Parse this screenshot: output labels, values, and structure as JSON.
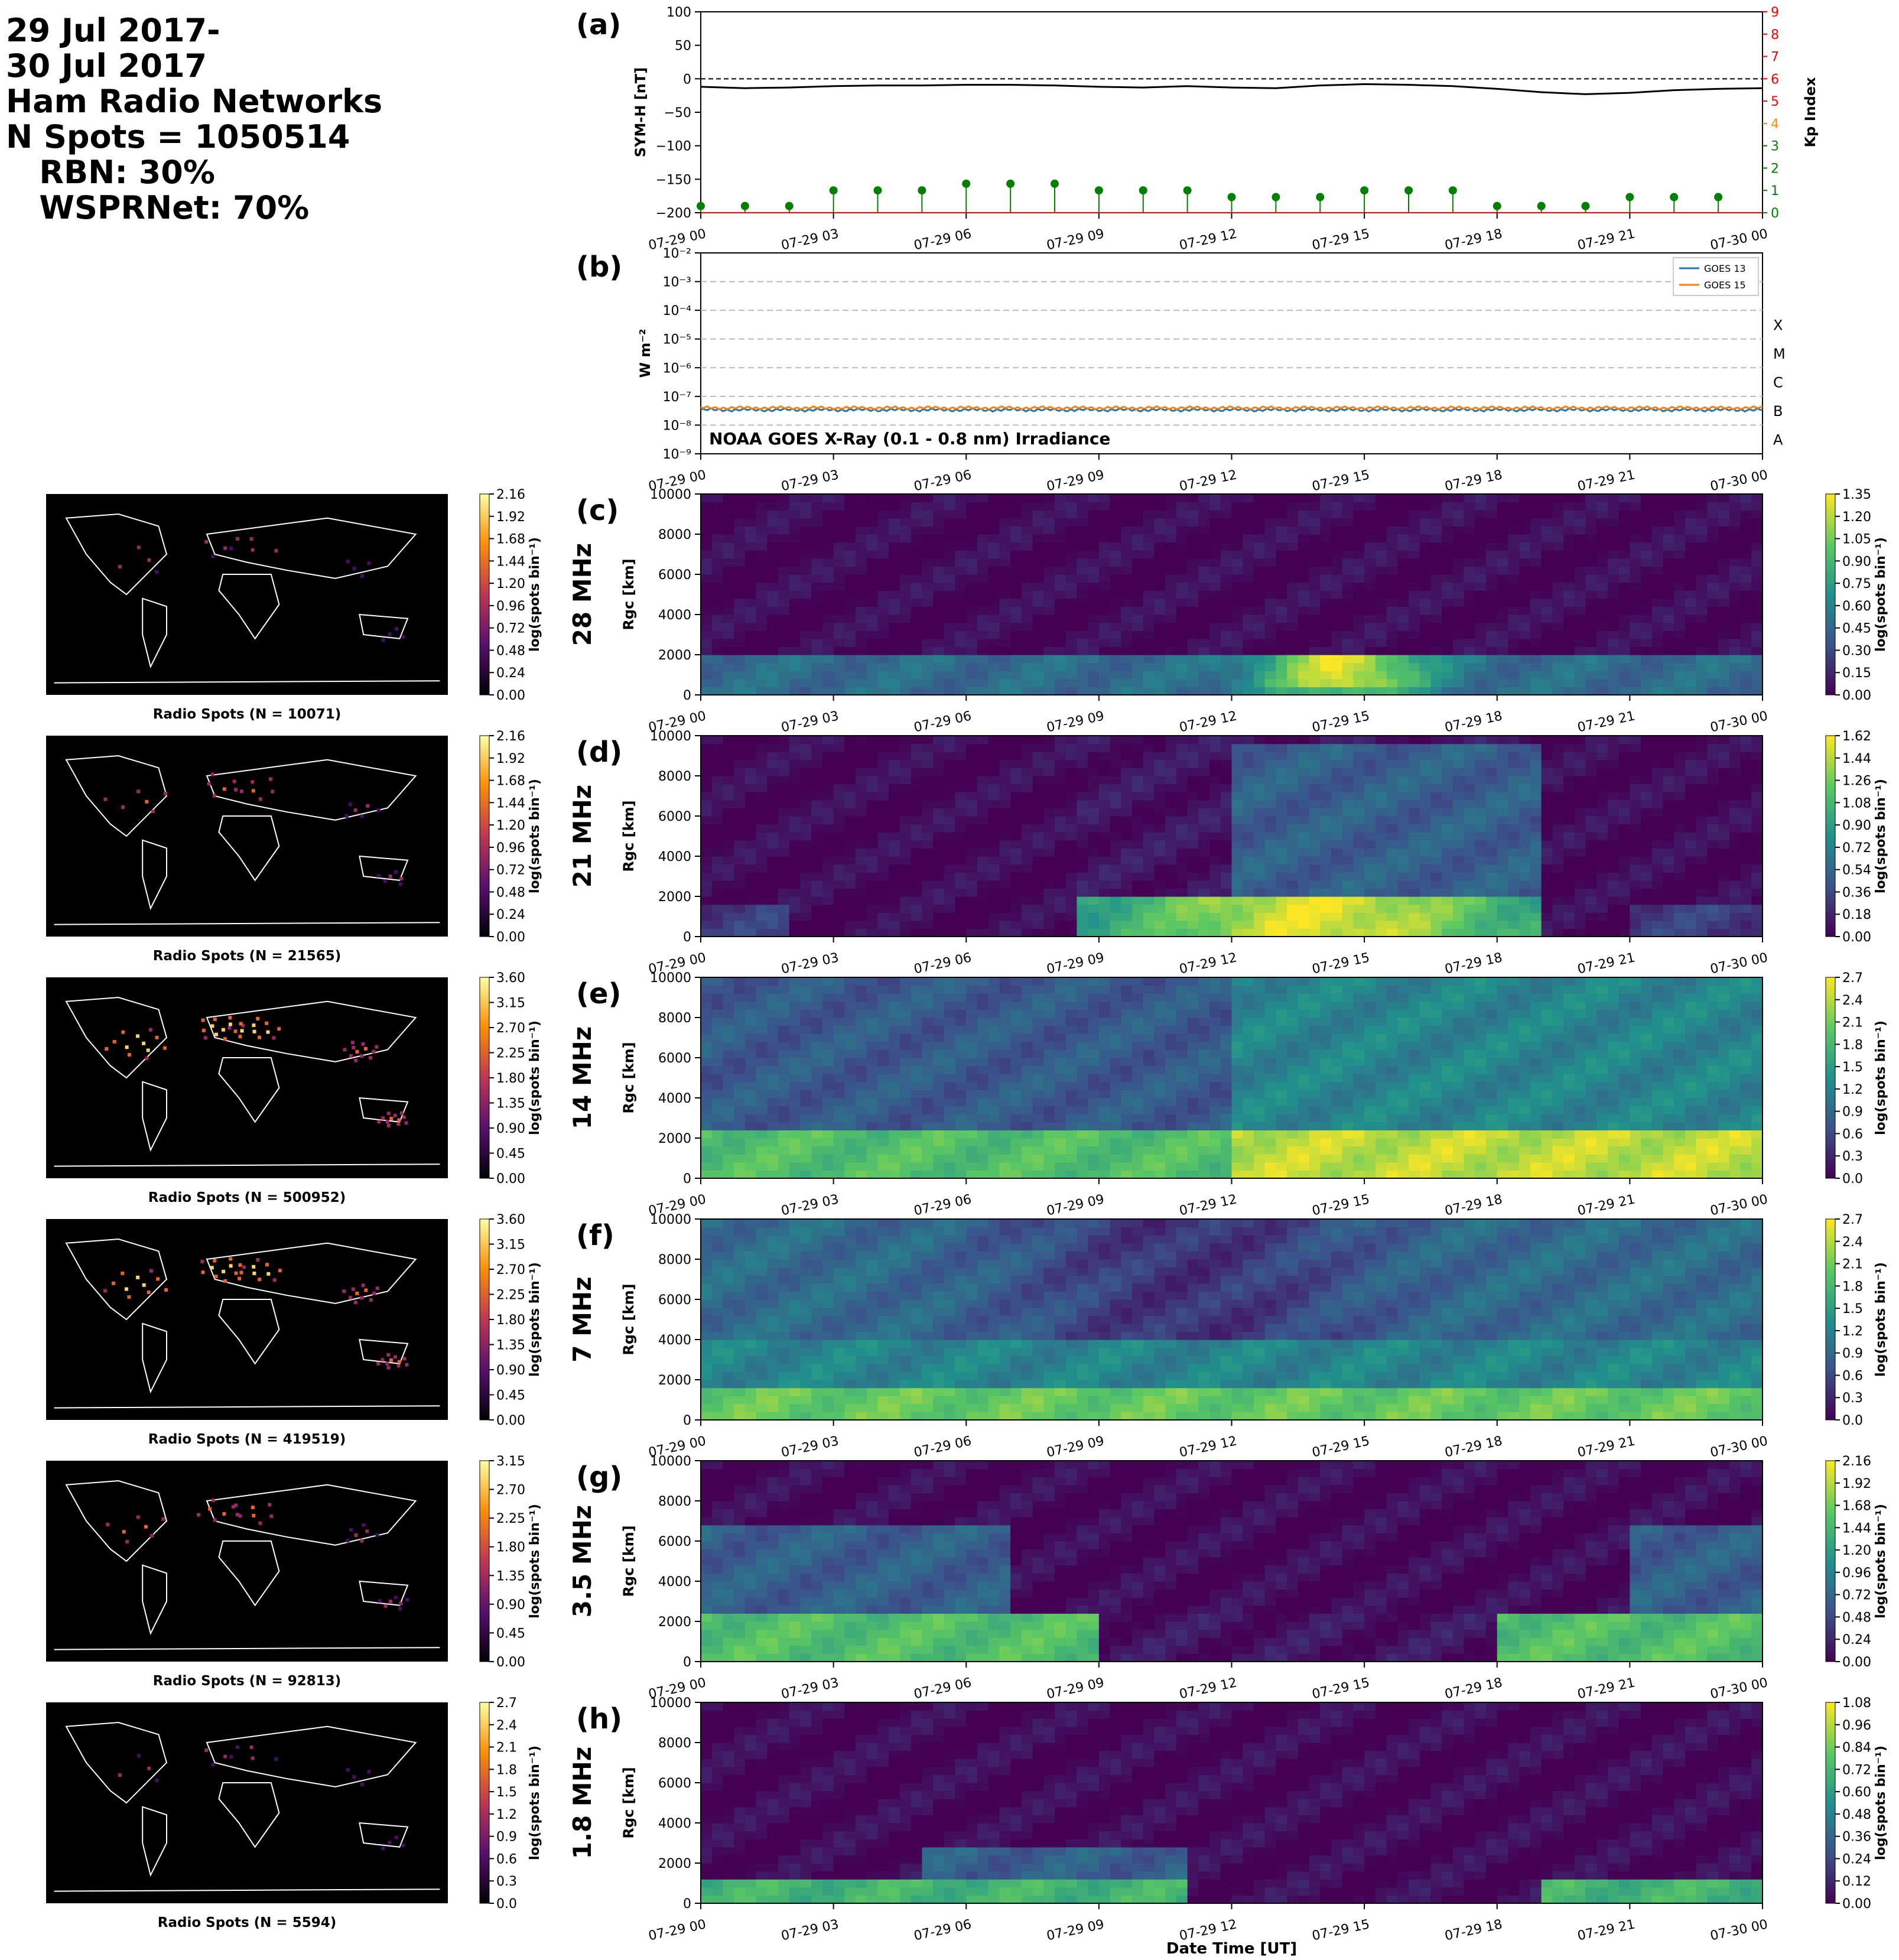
{
  "header": {
    "lines": [
      "29 Jul 2017-",
      "30 Jul 2017",
      "Ham Radio Networks",
      "N Spots = 1050514",
      "   RBN: 30%",
      "   WSPRNet: 70%"
    ]
  },
  "colors": {
    "symh_line": "#000000",
    "kp_green": "#008000",
    "kp_orange": "#ff8c00",
    "kp_red": "#ff0000",
    "goes13": "#1f77b4",
    "goes15": "#ff7f0e",
    "map_bg": "#000000",
    "coast": "#ffffff"
  },
  "time_ticks": [
    "07-29 00",
    "07-29 03",
    "07-29 06",
    "07-29 09",
    "07-29 12",
    "07-29 15",
    "07-29 18",
    "07-29 21",
    "07-30 00"
  ],
  "xlabel": "Date Time [UT]",
  "chart_data": [
    {
      "id": "a",
      "type": "line",
      "panel_label": "(a)",
      "ylabel": "SYM-H [nT]",
      "ylim": [
        -200,
        100
      ],
      "yticks": [
        "100",
        "50",
        "0",
        "−50",
        "−100",
        "−150",
        "−200"
      ],
      "y2label": "Kp Index",
      "y2lim": [
        0,
        9
      ],
      "y2ticks": [
        "0",
        "1",
        "2",
        "3",
        "4",
        "5",
        "6",
        "7",
        "8",
        "9"
      ],
      "symh": {
        "x_hours": [
          0,
          1,
          2,
          3,
          4,
          5,
          6,
          7,
          8,
          9,
          10,
          11,
          12,
          13,
          14,
          15,
          16,
          17,
          18,
          19,
          20,
          21,
          22,
          23,
          24
        ],
        "values": [
          -12,
          -14,
          -13,
          -11,
          -10,
          -10,
          -9,
          -9,
          -10,
          -12,
          -13,
          -11,
          -13,
          -14,
          -10,
          -8,
          -9,
          -11,
          -15,
          -20,
          -23,
          -21,
          -17,
          -15,
          -14
        ]
      },
      "kp": {
        "x_hours": [
          0,
          1,
          2,
          3,
          4,
          5,
          6,
          7,
          8,
          9,
          10,
          11,
          12,
          13,
          14,
          15,
          16,
          17,
          18,
          19,
          20,
          21,
          22,
          23
        ],
        "values": [
          0.3,
          0.3,
          0.3,
          1.0,
          1.0,
          1.0,
          1.3,
          1.3,
          1.3,
          1.0,
          1.0,
          1.0,
          0.7,
          0.7,
          0.7,
          1.0,
          1.0,
          1.0,
          0.3,
          0.3,
          0.3,
          0.7,
          0.7,
          0.7
        ]
      }
    },
    {
      "id": "b",
      "type": "line",
      "panel_label": "(b)",
      "ylabel": "W m⁻²",
      "yscale": "log",
      "ylim": [
        1e-09,
        0.01
      ],
      "yticks": [
        "10⁻²",
        "10⁻³",
        "10⁻⁴",
        "10⁻⁵",
        "10⁻⁶",
        "10⁻⁷",
        "10⁻⁸",
        "10⁻⁹"
      ],
      "flare_classes": [
        "X",
        "M",
        "C",
        "B",
        "A"
      ],
      "annotation": "NOAA GOES X-Ray (0.1 - 0.8 nm) Irradiance",
      "legend_position": "top-right",
      "series": [
        {
          "name": "GOES 13",
          "level": 3.4e-08
        },
        {
          "name": "GOES 15",
          "level": 4e-08
        }
      ]
    },
    {
      "id": "c",
      "type": "heatmap",
      "panel_label": "(c)",
      "band": "28 MHz",
      "ylabel": "Rgc [km]",
      "ylim": [
        0,
        10000
      ],
      "yticks": [
        "10000",
        "8000",
        "6000",
        "4000",
        "2000",
        "0"
      ],
      "colorbar_ticks": [
        "1.35",
        "1.20",
        "1.05",
        "0.90",
        "0.75",
        "0.60",
        "0.45",
        "0.30",
        "0.15",
        "0.00"
      ],
      "map": {
        "title": "Radio Spots (N = 10071)",
        "colorbar_ticks": [
          "2.16",
          "1.92",
          "1.68",
          "1.44",
          "1.20",
          "0.96",
          "0.72",
          "0.48",
          "0.24",
          "0.00"
        ]
      }
    },
    {
      "id": "d",
      "type": "heatmap",
      "panel_label": "(d)",
      "band": "21 MHz",
      "ylabel": "Rgc [km]",
      "ylim": [
        0,
        10000
      ],
      "yticks": [
        "10000",
        "8000",
        "6000",
        "4000",
        "2000",
        "0"
      ],
      "colorbar_ticks": [
        "1.62",
        "1.44",
        "1.26",
        "1.08",
        "0.90",
        "0.72",
        "0.54",
        "0.36",
        "0.18",
        "0.00"
      ],
      "map": {
        "title": "Radio Spots (N = 21565)",
        "colorbar_ticks": [
          "2.16",
          "1.92",
          "1.68",
          "1.44",
          "1.20",
          "0.96",
          "0.72",
          "0.48",
          "0.24",
          "0.00"
        ]
      }
    },
    {
      "id": "e",
      "type": "heatmap",
      "panel_label": "(e)",
      "band": "14 MHz",
      "ylabel": "Rgc [km]",
      "ylim": [
        0,
        10000
      ],
      "yticks": [
        "10000",
        "8000",
        "6000",
        "4000",
        "2000",
        "0"
      ],
      "colorbar_ticks": [
        "2.7",
        "2.4",
        "2.1",
        "1.8",
        "1.5",
        "1.2",
        "0.9",
        "0.6",
        "0.3",
        "0.0"
      ],
      "map": {
        "title": "Radio Spots (N = 500952)",
        "colorbar_ticks": [
          "3.60",
          "3.15",
          "2.70",
          "2.25",
          "1.80",
          "1.35",
          "0.90",
          "0.45",
          "0.00"
        ]
      }
    },
    {
      "id": "f",
      "type": "heatmap",
      "panel_label": "(f)",
      "band": "7 MHz",
      "ylabel": "Rgc [km]",
      "ylim": [
        0,
        10000
      ],
      "yticks": [
        "10000",
        "8000",
        "6000",
        "4000",
        "2000",
        "0"
      ],
      "colorbar_ticks": [
        "2.7",
        "2.4",
        "2.1",
        "1.8",
        "1.5",
        "1.2",
        "0.9",
        "0.6",
        "0.3",
        "0.0"
      ],
      "map": {
        "title": "Radio Spots (N = 419519)",
        "colorbar_ticks": [
          "3.60",
          "3.15",
          "2.70",
          "2.25",
          "1.80",
          "1.35",
          "0.90",
          "0.45",
          "0.00"
        ]
      }
    },
    {
      "id": "g",
      "type": "heatmap",
      "panel_label": "(g)",
      "band": "3.5 MHz",
      "ylabel": "Rgc [km]",
      "ylim": [
        0,
        10000
      ],
      "yticks": [
        "10000",
        "8000",
        "6000",
        "4000",
        "2000",
        "0"
      ],
      "colorbar_ticks": [
        "2.16",
        "1.92",
        "1.68",
        "1.44",
        "1.20",
        "0.96",
        "0.72",
        "0.48",
        "0.24",
        "0.00"
      ],
      "map": {
        "title": "Radio Spots (N = 92813)",
        "colorbar_ticks": [
          "3.15",
          "2.70",
          "2.25",
          "1.80",
          "1.35",
          "0.90",
          "0.45",
          "0.00"
        ]
      }
    },
    {
      "id": "h",
      "type": "heatmap",
      "panel_label": "(h)",
      "band": "1.8 MHz",
      "ylabel": "Rgc [km]",
      "ylim": [
        0,
        10000
      ],
      "yticks": [
        "10000",
        "8000",
        "6000",
        "4000",
        "2000",
        "0"
      ],
      "colorbar_ticks": [
        "1.08",
        "0.96",
        "0.84",
        "0.72",
        "0.60",
        "0.48",
        "0.36",
        "0.24",
        "0.12",
        "0.00"
      ],
      "map": {
        "title": "Radio Spots (N = 5594)",
        "colorbar_ticks": [
          "2.7",
          "2.4",
          "2.1",
          "1.8",
          "1.5",
          "1.2",
          "0.9",
          "0.6",
          "0.3",
          "0.0"
        ]
      }
    }
  ],
  "colorbar_label": "log(spots bin⁻¹)"
}
